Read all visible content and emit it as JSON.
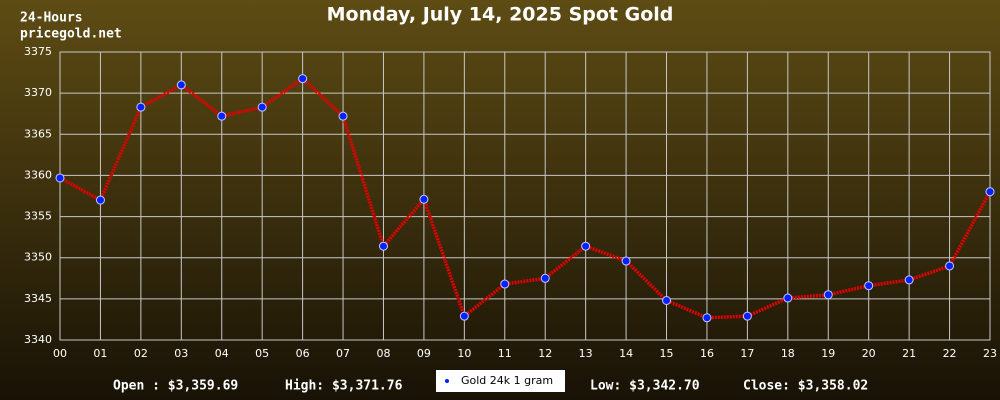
{
  "chart_data": {
    "type": "line",
    "title": "Monday, July 14, 2025 Spot Gold",
    "period": "24-Hours",
    "source": "pricegold.net",
    "categories": [
      "00",
      "01",
      "02",
      "03",
      "04",
      "05",
      "06",
      "07",
      "08",
      "09",
      "10",
      "11",
      "12",
      "13",
      "14",
      "15",
      "16",
      "17",
      "18",
      "19",
      "20",
      "21",
      "22",
      "23"
    ],
    "series": [
      {
        "name": "Gold 24k 1 gram",
        "color": "#e00000",
        "marker_color": "#0022ff",
        "values": [
          3359.69,
          3357.0,
          3368.3,
          3371.0,
          3367.2,
          3368.3,
          3371.76,
          3367.2,
          3351.4,
          3357.1,
          3342.9,
          3346.8,
          3347.5,
          3351.4,
          3349.6,
          3344.8,
          3342.7,
          3342.9,
          3345.1,
          3345.5,
          3346.6,
          3347.3,
          3349.0,
          3358.02
        ]
      }
    ],
    "ylim": [
      3340,
      3375
    ],
    "yticks": [
      3340,
      3345,
      3350,
      3355,
      3360,
      3365,
      3370,
      3375
    ],
    "grid": true,
    "summary": [
      "Open : $3,359.69",
      "High: $3,371.76",
      "Low: $3,342.70",
      "Close: $3,358.02"
    ]
  }
}
